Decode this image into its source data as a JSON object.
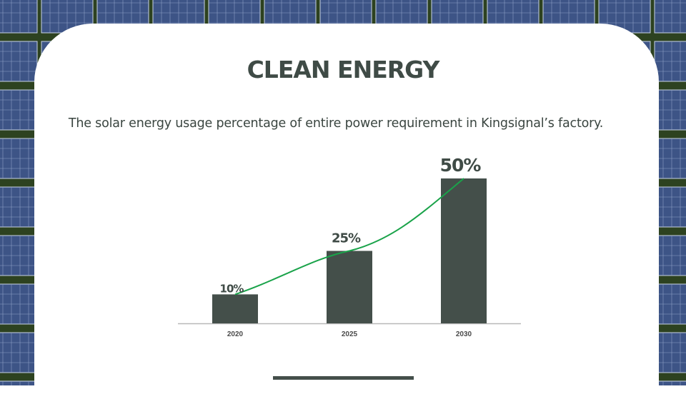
{
  "slide": {
    "title": "CLEAN ENERGY",
    "subtitle": "The solar energy usage percentage of entire power requirement in Kingsignal’s factory."
  },
  "colors": {
    "bar": "#444f4a",
    "trend_line": "#1aa34a",
    "axis": "#b8b8b8",
    "text": "#3f4b46"
  },
  "chart_data": {
    "type": "bar",
    "categories": [
      "2020",
      "2025",
      "2030"
    ],
    "values": [
      10,
      25,
      50
    ],
    "data_labels": [
      "10%",
      "25%",
      "50%"
    ],
    "trend_line": true,
    "ylim": [
      0,
      50
    ],
    "grid": false,
    "legend": "none"
  }
}
